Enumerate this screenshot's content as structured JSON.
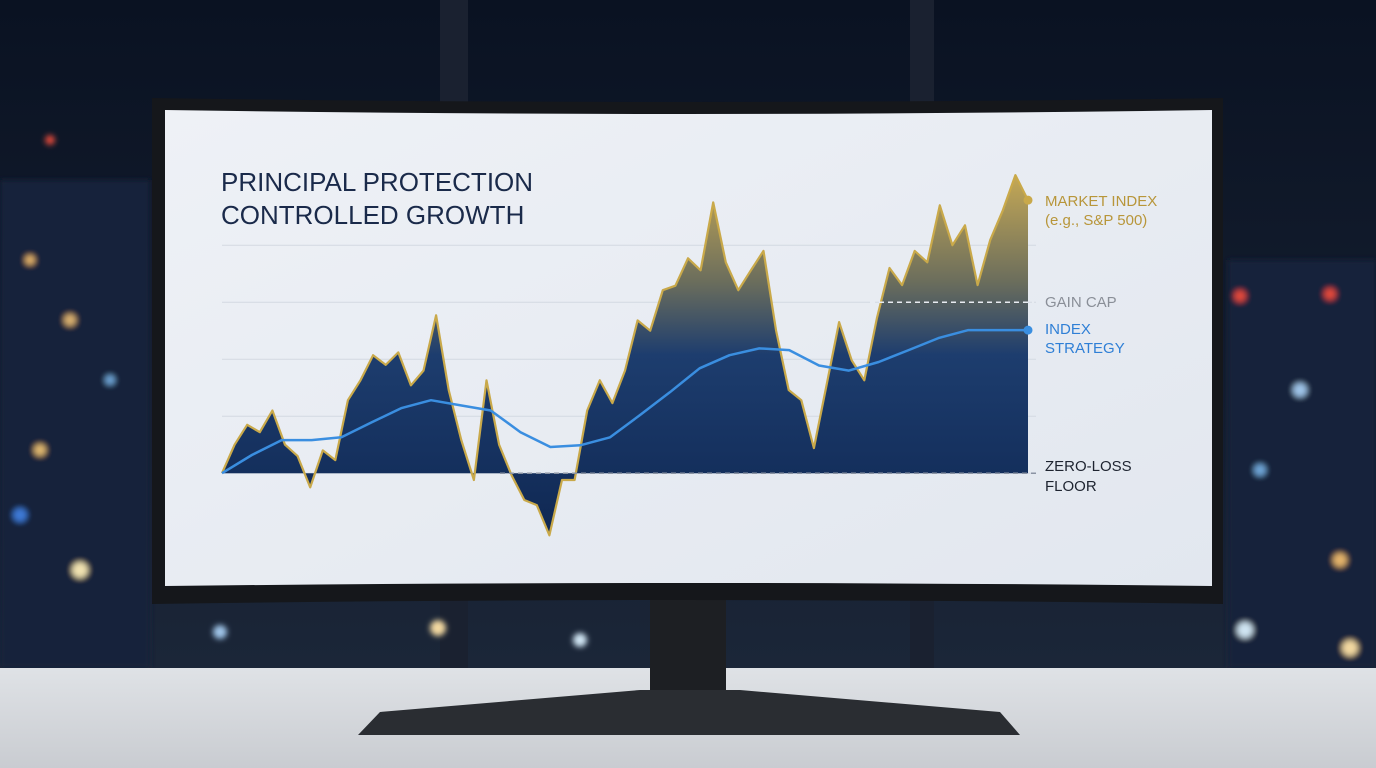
{
  "chart_data": {
    "type": "line",
    "title": [
      "PRINCIPAL PROTECTION",
      "CONTROLLED GROWTH"
    ],
    "ylim": [
      -14,
      56
    ],
    "yticks": [
      0,
      10,
      20,
      30,
      40
    ],
    "grid": true,
    "series": [
      {
        "name": [
          "MARKET INDEX",
          "(e.g., S&P 500)"
        ],
        "color": "#c9a94a",
        "values": [
          0,
          5,
          8.5,
          7.2,
          11,
          5,
          3,
          -2.5,
          4,
          2.3,
          12.8,
          16.3,
          20.7,
          19,
          21.2,
          15.4,
          18,
          27.7,
          14.6,
          5.8,
          -1.2,
          16.3,
          5,
          -0.4,
          -4.7,
          -5.6,
          -10.9,
          -1.2,
          -1.2,
          11,
          16.3,
          12.3,
          18,
          26.8,
          25,
          32.1,
          32.9,
          37.7,
          35.6,
          47.5,
          37,
          32.1,
          35.6,
          39,
          25,
          14.6,
          12.8,
          4.4,
          15.4,
          26.5,
          19.8,
          16.3,
          27.2,
          36,
          33,
          39,
          37,
          47,
          40,
          43.5,
          33,
          40.9,
          46.1,
          52.3,
          47.9
        ]
      },
      {
        "name": [
          "INDEX",
          "STRATEGY"
        ],
        "color": "#3a8ee0",
        "values": [
          0,
          3.2,
          5.8,
          5.8,
          6.3,
          8.9,
          11.4,
          12.8,
          11.9,
          11,
          7.2,
          4.6,
          4.9,
          6.3,
          10.2,
          14.2,
          18.4,
          20.7,
          21.9,
          21.6,
          18.9,
          18,
          19.5,
          21.6,
          23.7,
          25.1,
          25.1,
          25.1
        ]
      }
    ],
    "gain_cap": {
      "label": "GAIN CAP",
      "value": 30
    },
    "floor": {
      "label": [
        "ZERO-LOSS",
        "FLOOR"
      ],
      "value": 0
    }
  }
}
